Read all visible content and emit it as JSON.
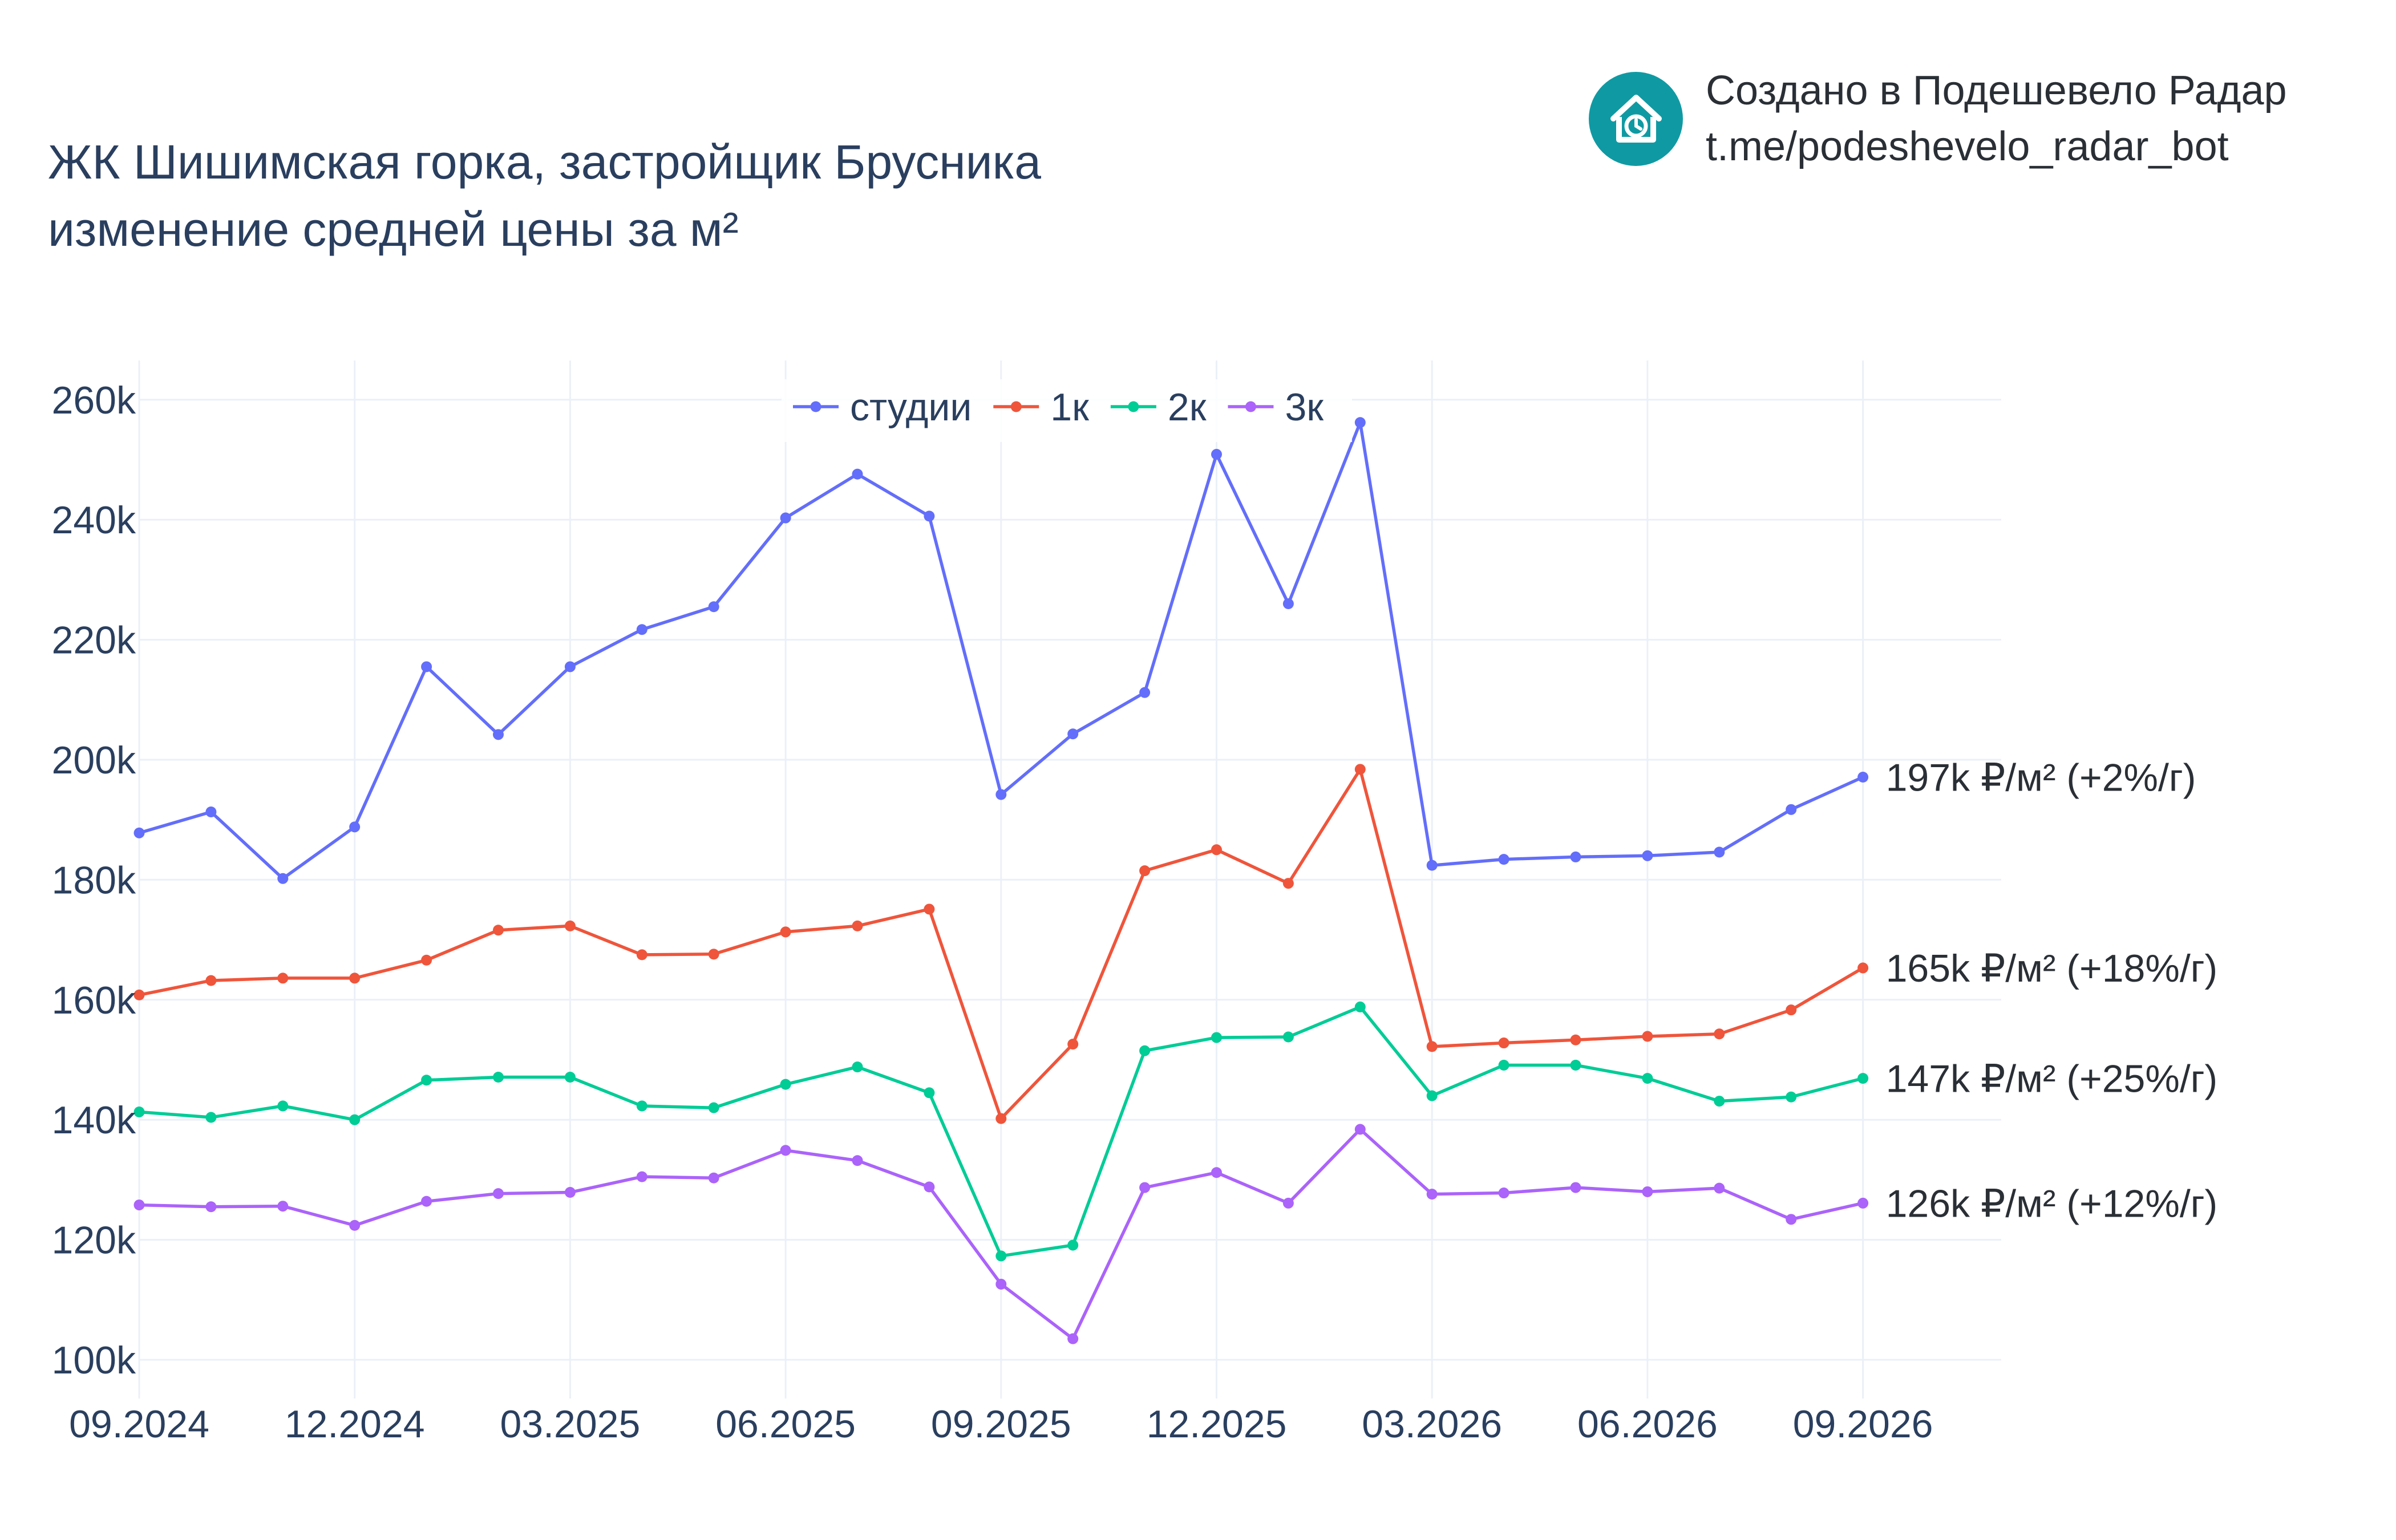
{
  "header": {
    "title_line1": "ЖК Шишимская горка, застройщик Брусника",
    "title_line2": "изменение средней цены за м²"
  },
  "brand": {
    "line1": "Создано в Подешевело Радар",
    "line2": "t.me/podeshevelo_radar_bot",
    "icon": "house-clock-icon",
    "color": "#0f9aa3"
  },
  "chart_data": {
    "type": "line",
    "x": [
      "09.2024",
      "10.2024",
      "11.2024",
      "12.2024",
      "01.2025",
      "02.2025",
      "03.2025",
      "04.2025",
      "05.2025",
      "06.2025",
      "07.2025",
      "08.2025",
      "09.2025",
      "10.2025",
      "11.2025",
      "12.2025",
      "01.2026",
      "02.2026",
      "03.2026",
      "04.2026",
      "05.2026",
      "06.2026",
      "07.2026",
      "08.2026",
      "09.2026"
    ],
    "x_tick_labels": [
      "09.2024",
      "12.2024",
      "03.2025",
      "06.2025",
      "09.2025",
      "12.2025",
      "03.2026",
      "06.2026",
      "09.2026"
    ],
    "y_tick_labels": [
      "100k",
      "120k",
      "140k",
      "160k",
      "180k",
      "200k",
      "220k",
      "240k",
      "260k"
    ],
    "ylim": [
      95000,
      266000
    ],
    "grid": true,
    "legend_position": "top-center",
    "series": [
      {
        "name": "студии",
        "color": "#636efa",
        "end_label": "197k ₽/м² (+2%/г)",
        "values": [
          187800,
          191300,
          180200,
          188800,
          215500,
          204200,
          215500,
          221700,
          225500,
          240300,
          247600,
          240600,
          194200,
          204300,
          211200,
          250900,
          226000,
          256200,
          182400,
          183400,
          183800,
          184000,
          184600,
          191700,
          197100
        ]
      },
      {
        "name": "1к",
        "color": "#ef553b",
        "end_label": "165k ₽/м² (+18%/г)",
        "values": [
          160800,
          163200,
          163600,
          163600,
          166600,
          171600,
          172300,
          167500,
          167600,
          171300,
          172300,
          175100,
          140200,
          152600,
          181500,
          185000,
          179400,
          198400,
          152200,
          152800,
          153300,
          153900,
          154300,
          158300,
          165300
        ]
      },
      {
        "name": "2к",
        "color": "#00cc96",
        "end_label": "147k ₽/м² (+25%/г)",
        "values": [
          141300,
          140400,
          142300,
          140000,
          146600,
          147100,
          147100,
          142300,
          142000,
          145900,
          148800,
          144500,
          117300,
          119100,
          151500,
          153700,
          153800,
          158800,
          144000,
          149100,
          149100,
          146900,
          143100,
          143800,
          146900
        ]
      },
      {
        "name": "3к",
        "color": "#ab63fa",
        "end_label": "126k ₽/м² (+12%/г)",
        "values": [
          125800,
          125500,
          125600,
          122400,
          126400,
          127700,
          127900,
          130500,
          130300,
          134900,
          133200,
          128800,
          112600,
          103500,
          128700,
          131200,
          126100,
          138400,
          127600,
          127800,
          128700,
          128000,
          128600,
          123400,
          126100
        ]
      }
    ]
  }
}
